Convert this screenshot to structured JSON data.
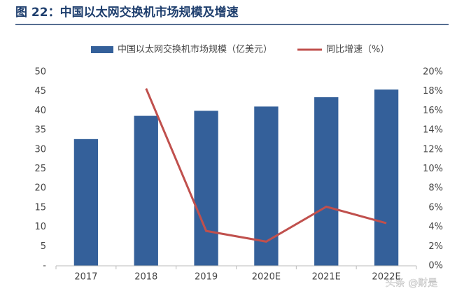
{
  "chart_data": {
    "type": "bar-line",
    "title": "图 22：中国以太网交换机市场规模及增速",
    "categories": [
      "2017",
      "2018",
      "2019",
      "2020E",
      "2021E",
      "2022E"
    ],
    "series": [
      {
        "name": "中国以太网交换机市场规模（亿美元）",
        "type": "bar",
        "color": "#34609a",
        "values": [
          32.7,
          38.7,
          40.0,
          41.1,
          43.5,
          45.5
        ]
      },
      {
        "name": "同比增速（%）",
        "type": "line",
        "axis": "y2",
        "color": "#c0504d",
        "values": [
          null,
          18.3,
          3.6,
          2.5,
          6.1,
          4.4
        ]
      }
    ],
    "ylim": [
      0,
      50
    ],
    "yticks": [
      {
        "value": 0,
        "label": "-"
      },
      5,
      10,
      15,
      20,
      25,
      30,
      35,
      40,
      45,
      50
    ],
    "y2lim": [
      0,
      20
    ],
    "y2ticks": [
      {
        "value": 0,
        "label": "0%"
      },
      {
        "value": 2,
        "label": "2%"
      },
      {
        "value": 4,
        "label": "4%"
      },
      {
        "value": 6,
        "label": "6%"
      },
      {
        "value": 8,
        "label": "8%"
      },
      {
        "value": 10,
        "label": "10%"
      },
      {
        "value": 12,
        "label": "12%"
      },
      {
        "value": 14,
        "label": "14%"
      },
      {
        "value": 16,
        "label": "16%"
      },
      {
        "value": 18,
        "label": "18%"
      },
      {
        "value": 20,
        "label": "20%"
      }
    ],
    "watermark": "头条 @财是"
  }
}
